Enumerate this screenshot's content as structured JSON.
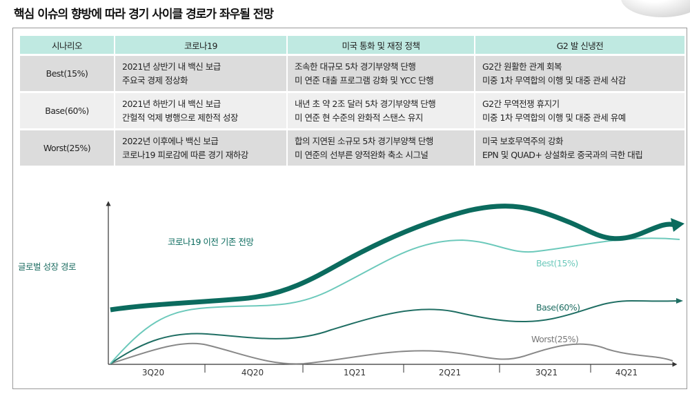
{
  "title": "핵심 이슈의 향방에 따라 경기 사이클 경로가 좌우될 전망",
  "table": {
    "headers": [
      "시나리오",
      "코로나19",
      "미국 통화 및 재정 정책",
      "G2 발 신냉전"
    ],
    "rows": [
      {
        "scenario": "Best(15%)",
        "covid": [
          "2021년 상반기 내 백신 보급",
          "주요국 경제 정상화"
        ],
        "policy": [
          "조속한 대규모 5차 경기부양책 단행",
          "미 연준 대출 프로그램 강화 및 YCC 단행"
        ],
        "g2": [
          "G2간 원활한 관계 회복",
          "미중 1차 무역합의 이행 및 대중 관세 삭감"
        ]
      },
      {
        "scenario": "Base(60%)",
        "covid": [
          "2021년 하반기 내 백신 보급",
          "간헐적 억제 병행으로 제한적 성장"
        ],
        "policy": [
          "내년 초 약 2조 달러 5차 경기부양책 단행",
          "미 연준 현 수준의 완화적 스탠스 유지"
        ],
        "g2": [
          "G2간 무역전쟁 휴지기",
          "미중 1차 무역합의 이행 및 대중 관세 유예"
        ]
      },
      {
        "scenario": "Worst(25%)",
        "covid": [
          "2022년 이후에나 백신 보급",
          "코로나19 피로감에 따른 경기 재하강"
        ],
        "policy": [
          "합의 지연된 소규모 5차 경기부양책 단행",
          "미 연준의 선부른 양적완화 축소 시그널"
        ],
        "g2": [
          "미국 보호무역주의 강화",
          "EPN 및 QUAD+ 상설화로 중국과의 극한 대립"
        ]
      }
    ]
  },
  "diagram": {
    "y_label": "글로벌 성장 경로",
    "baseline_label": "코로나19 이전 기존 전망",
    "series": [
      "Best(15%)",
      "Base(60%)",
      "Worst(25%)"
    ],
    "x_ticks": [
      "3Q20",
      "4Q20",
      "1Q21",
      "2Q21",
      "3Q21",
      "4Q21"
    ],
    "colors": {
      "baseline": "#0b6b5e",
      "best": "#6cc9bb",
      "base": "#1f6e63",
      "worst": "#888888",
      "header": "#bfe9e1"
    }
  }
}
